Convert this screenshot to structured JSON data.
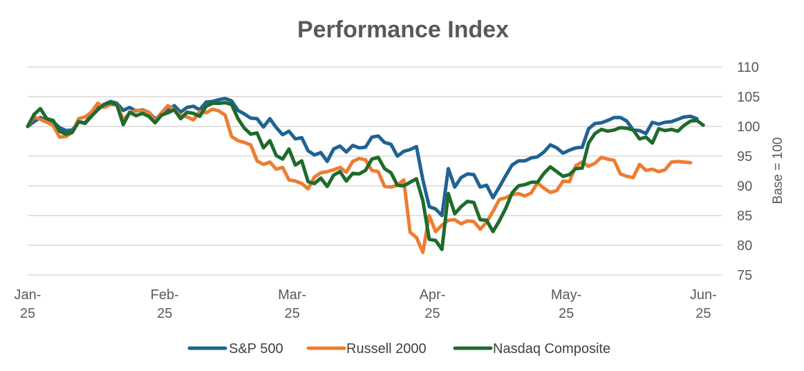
{
  "chart_data": {
    "type": "line",
    "title": "Performance Index",
    "xlabel": "",
    "ylabel": "Base = 100",
    "y_axis_position": "right",
    "ylim": [
      75,
      110
    ],
    "yticks": [
      75,
      80,
      85,
      90,
      95,
      100,
      105,
      110
    ],
    "grid": true,
    "legend_position": "bottom",
    "x_tick_labels": [
      {
        "line1": "Jan-",
        "line2": "25",
        "index": 0
      },
      {
        "line1": "Feb-",
        "line2": "25",
        "index": 21.5
      },
      {
        "line1": "Mar-",
        "line2": "25",
        "index": 41.5
      },
      {
        "line1": "Apr-",
        "line2": "25",
        "index": 63.5
      },
      {
        "line1": "May-",
        "line2": "25",
        "index": 84.5
      },
      {
        "line1": "Jun-",
        "line2": "25",
        "index": 106
      }
    ],
    "x_count": 110,
    "series": [
      {
        "name": "S&P 500",
        "color": "#1F6391",
        "values": [
          100,
          100.8,
          101.5,
          101,
          100.8,
          99.8,
          99.3,
          99.4,
          100.8,
          100.6,
          101.9,
          103.1,
          103.7,
          104.2,
          103.9,
          102.7,
          103.2,
          102.6,
          102.8,
          102.4,
          101.2,
          102.1,
          102.7,
          103.5,
          102.4,
          103.2,
          103.4,
          102.8,
          104.1,
          104.2,
          104.5,
          104.7,
          104.3,
          102.7,
          102.1,
          101.4,
          101.3,
          99.9,
          101.3,
          99.8,
          98.6,
          99.2,
          97.9,
          98.1,
          95.9,
          95.2,
          95.6,
          94.1,
          96.2,
          96.7,
          95.7,
          96.8,
          96.4,
          96.5,
          98.2,
          98.4,
          97.3,
          97,
          95,
          95.8,
          96.1,
          96.6,
          91,
          86.5,
          86.1,
          85,
          92.9,
          89.8,
          91.4,
          92,
          91.9,
          89.8,
          90.1,
          88,
          89.8,
          91.7,
          93.5,
          94.2,
          94.2,
          94.7,
          94.9,
          95.7,
          96.9,
          96.4,
          95.5,
          96,
          96.4,
          96.5,
          99.6,
          100.5,
          100.6,
          101,
          101.5,
          101.5,
          100.9,
          99.4,
          99.3,
          98.8,
          100.7,
          100.4,
          100.7,
          100.8,
          101.2,
          101.6,
          101.7,
          101.3
        ],
        "note": "values read approx. from chart"
      },
      {
        "name": "Russell 2000",
        "color": "#ED7D31",
        "values": [
          100,
          101.6,
          101.2,
          100.7,
          100.2,
          98.2,
          98.3,
          99,
          101.3,
          101.6,
          102.4,
          103.9,
          103.2,
          103.7,
          103.7,
          101.1,
          102.2,
          102.7,
          102.7,
          102.4,
          100.9,
          102.3,
          103.5,
          102.8,
          101.8,
          101.6,
          101.1,
          102.5,
          102.3,
          102.9,
          102.6,
          101.9,
          98.3,
          97.6,
          97.3,
          96.9,
          94.2,
          93.6,
          94,
          92.8,
          93.1,
          91,
          90.8,
          90.4,
          89.5,
          91.5,
          92.2,
          92.4,
          92.7,
          93.1,
          92.3,
          94.1,
          94.6,
          94.4,
          92.6,
          92.4,
          89.9,
          89.8,
          90.1,
          91,
          82.2,
          81.3,
          78.8,
          85,
          82.3,
          83.4,
          84.2,
          84.3,
          83.6,
          84.1,
          84,
          82.7,
          83.9,
          85.7,
          87.7,
          88,
          88.5,
          88.7,
          88.3,
          88.8,
          90.5,
          89.6,
          88.9,
          89.2,
          90.8,
          90.7,
          93.4,
          94,
          93.3,
          93.8,
          94.8,
          94.5,
          94.3,
          92,
          91.6,
          91.4,
          93.6,
          92.6,
          92.8,
          92.4,
          92.7,
          94,
          94.1,
          94,
          93.9
        ],
        "note": "values read approx. from chart"
      },
      {
        "name": "Nasdaq Composite",
        "color": "#1E6B2C",
        "values": [
          100,
          102,
          103,
          101.3,
          101,
          99.2,
          98.7,
          99,
          100.8,
          100.5,
          101.7,
          102.8,
          103.7,
          104,
          103.6,
          100.3,
          102.4,
          101.8,
          102.2,
          101.7,
          100.6,
          101.9,
          102.3,
          102.8,
          101.3,
          102.4,
          102.2,
          101.7,
          103.4,
          103.9,
          103.9,
          104,
          103.7,
          101.3,
          99.7,
          98.7,
          98.9,
          96.4,
          97.6,
          95.1,
          94.5,
          96.2,
          93.5,
          94.2,
          90.7,
          90.4,
          91.3,
          89.9,
          91.8,
          92.4,
          90.8,
          92.1,
          92,
          92.6,
          94.5,
          94.8,
          92.9,
          92.2,
          90.1,
          90,
          90.6,
          91.2,
          87.5,
          81,
          80.8,
          79.3,
          88.7,
          85.3,
          86.5,
          87.4,
          87.2,
          84.3,
          84.2,
          82.3,
          84.1,
          86.2,
          88.8,
          90,
          90.2,
          90.6,
          90.6,
          92.1,
          93.2,
          92.4,
          91.6,
          91.9,
          92.9,
          93,
          97.2,
          98.8,
          99.5,
          99.2,
          99.4,
          99.8,
          99.7,
          99.4,
          97.9,
          98.2,
          97.2,
          99.6,
          99.3,
          99.5,
          99.2,
          100.2,
          100.9,
          101,
          100.2
        ],
        "note": "values read approx. from chart"
      }
    ]
  }
}
